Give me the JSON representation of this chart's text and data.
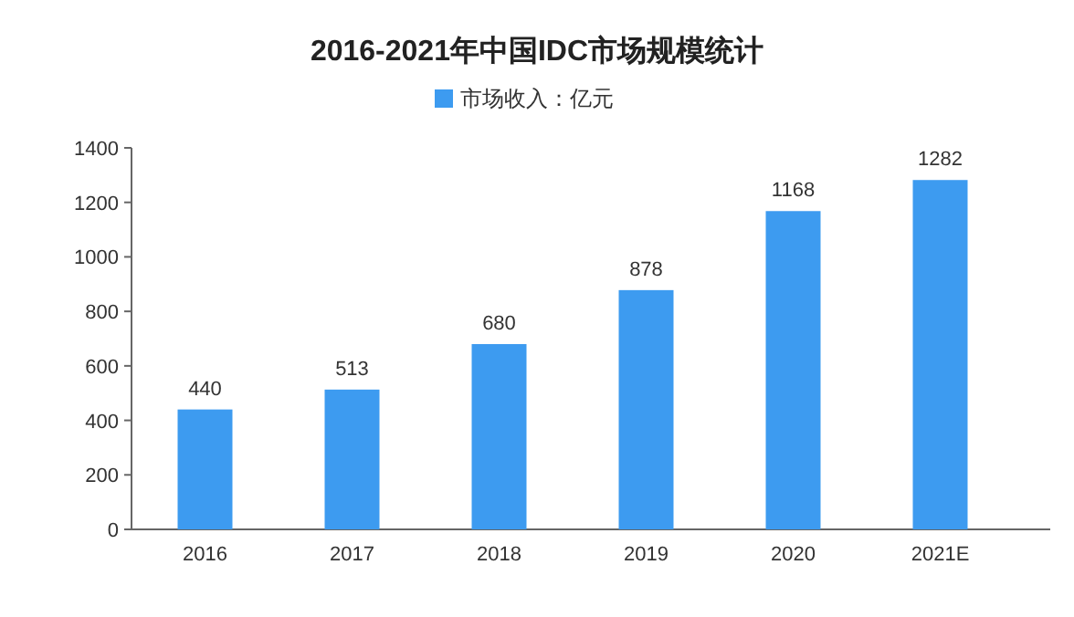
{
  "chart_data": {
    "type": "bar",
    "title": "2016-2021年中国IDC市场规模统计",
    "categories": [
      "2016",
      "2017",
      "2018",
      "2019",
      "2020",
      "2021E"
    ],
    "series": [
      {
        "name": "市场收入：亿元",
        "color": "#3d9bf0",
        "values": [
          440,
          513,
          680,
          878,
          1168,
          1282
        ]
      }
    ],
    "ylim": [
      0,
      1400
    ],
    "yticks": [
      0,
      200,
      400,
      600,
      800,
      1000,
      1200,
      1400
    ],
    "data_labels": true,
    "legend": "top",
    "grid": false
  }
}
